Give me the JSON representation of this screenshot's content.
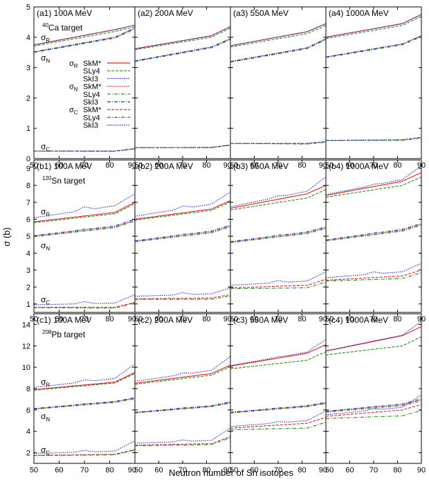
{
  "figure": {
    "xlabel": "Neutron number of Sn isotopes",
    "ylabel": "σ (b)"
  },
  "legend": {
    "entries": [
      {
        "group": "σR",
        "sub": "R",
        "label": "SkM*",
        "color": "#e41a1c",
        "dash": "solid"
      },
      {
        "group": "",
        "sub": "",
        "label": "SLy4",
        "color": "#1a8a1a",
        "dash": "dashed"
      },
      {
        "group": "",
        "sub": "",
        "label": "SkI3",
        "color": "#2222dd",
        "dash": "dotted"
      },
      {
        "group": "σN",
        "sub": "N",
        "label": "SkM*",
        "color": "#e41a1c",
        "dash": "dotted"
      },
      {
        "group": "",
        "sub": "",
        "label": "SLy4",
        "color": "#1a8a1a",
        "dash": "dashdot"
      },
      {
        "group": "",
        "sub": "",
        "label": "SkI3",
        "color": "#2222dd",
        "dash": "dashdot"
      },
      {
        "group": "σC",
        "sub": "C",
        "label": "SkM*",
        "color": "#e41a1c",
        "dash": "dashed"
      },
      {
        "group": "",
        "sub": "",
        "label": "SLy4",
        "color": "#1a8a1a",
        "dash": "dashdot"
      },
      {
        "group": "",
        "sub": "",
        "label": "SkI3",
        "color": "#2222dd",
        "dash": "dotted"
      }
    ]
  },
  "chart_data": {
    "type": "line",
    "x_range": [
      50,
      90
    ],
    "x_ticks": [
      50,
      60,
      70,
      80,
      90
    ],
    "x": [
      50,
      52,
      54,
      56,
      58,
      60,
      62,
      64,
      66,
      68,
      70,
      72,
      74,
      76,
      78,
      80,
      82,
      84,
      86,
      88,
      90
    ],
    "rows": [
      {
        "target_mass": "40",
        "target_element": "Ca",
        "target_suffix": " target",
        "ylim": [
          0,
          5
        ],
        "yticks": [
          0,
          1,
          2,
          3,
          4,
          5
        ],
        "panels": [
          {
            "label": "(a1) 100A MeV",
            "R": [
              3.75,
              4.25,
              4.4
            ],
            "N": [
              3.52,
              4.0,
              4.3
            ],
            "C": [
              0.25,
              0.25,
              0.33
            ],
            "dR": [
              0.04,
              0.02
            ],
            "dN": [
              0.02,
              0.01
            ],
            "dC": [
              0.0,
              0.01
            ],
            "bR": [
              0.0,
              0.0
            ],
            "bN": [
              0.0,
              0.0
            ],
            "bC": [
              0.0,
              0.0
            ]
          },
          {
            "label": "(a2) 200A MeV",
            "R": [
              3.62,
              4.05,
              4.35
            ],
            "N": [
              3.22,
              3.68,
              3.95
            ],
            "C": [
              0.36,
              0.37,
              0.45
            ],
            "dR": [
              0.03,
              0.02
            ],
            "dN": [
              0.02,
              0.01
            ],
            "dC": [
              0.0,
              0.01
            ],
            "bR": [
              0.0,
              0.0
            ],
            "bN": [
              0.0,
              0.0
            ],
            "bC": [
              0.0,
              0.0
            ]
          },
          {
            "label": "(a3) 550A MeV",
            "R": [
              3.72,
              4.18,
              4.45
            ],
            "N": [
              3.2,
              3.65,
              3.95
            ],
            "C": [
              0.5,
              0.5,
              0.56
            ],
            "dR": [
              0.04,
              0.02
            ],
            "dN": [
              0.02,
              0.01
            ],
            "dC": [
              0.0,
              0.02
            ],
            "bR": [
              0.0,
              0.0
            ],
            "bN": [
              0.0,
              0.0
            ],
            "bC": [
              0.0,
              0.0
            ]
          },
          {
            "label": "(a4) 1000A MeV",
            "R": [
              4.0,
              4.45,
              4.75
            ],
            "N": [
              3.35,
              3.78,
              4.05
            ],
            "C": [
              0.6,
              0.62,
              0.7
            ],
            "dR": [
              0.04,
              0.02
            ],
            "dN": [
              0.02,
              0.01
            ],
            "dC": [
              0.0,
              0.02
            ],
            "bR": [
              0.0,
              0.0
            ],
            "bN": [
              0.0,
              0.0
            ],
            "bC": [
              0.0,
              0.0
            ]
          }
        ]
      },
      {
        "target_mass": "120",
        "target_element": "Sn",
        "target_suffix": " target",
        "ylim": [
          0.5,
          9.5
        ],
        "yticks": [
          1,
          2,
          3,
          4,
          5,
          6,
          7,
          8,
          9
        ],
        "panels": [
          {
            "label": "(b1) 100A MeV",
            "R": [
              5.85,
              6.4,
              7.0
            ],
            "N": [
              5.0,
              5.55,
              5.95
            ],
            "C": [
              0.8,
              0.8,
              1.1
            ],
            "dR": [
              0.05,
              0.03
            ],
            "dN": [
              0.03,
              0.02
            ],
            "dC": [
              0.02,
              0.03
            ],
            "bR": [
              0.4,
              0.5
            ],
            "bN": [
              0.05,
              0.05
            ],
            "bC": [
              0.25,
              0.45
            ]
          },
          {
            "label": "(b2) 200A MeV",
            "R": [
              6.0,
              6.6,
              7.1
            ],
            "N": [
              4.7,
              5.25,
              5.6
            ],
            "C": [
              1.3,
              1.35,
              1.55
            ],
            "dR": [
              0.05,
              0.03
            ],
            "dN": [
              0.03,
              0.02
            ],
            "dC": [
              0.03,
              0.05
            ],
            "bR": [
              0.3,
              0.5
            ],
            "bN": [
              0.05,
              0.05
            ],
            "bC": [
              0.25,
              0.4
            ]
          },
          {
            "label": "(b3) 550A MeV",
            "R": [
              6.65,
              7.5,
              8.0
            ],
            "N": [
              4.65,
              5.2,
              5.5
            ],
            "C": [
              1.95,
              2.1,
              2.45
            ],
            "dR": [
              0.1,
              0.15
            ],
            "dN": [
              0.03,
              0.02
            ],
            "dC": [
              0.05,
              0.1
            ],
            "bR": [
              0.15,
              0.5
            ],
            "bN": [
              0.05,
              0.05
            ],
            "bC": [
              0.25,
              0.45
            ]
          },
          {
            "label": "(b4) 1000A MeV",
            "R": [
              7.4,
              8.25,
              8.75
            ],
            "N": [
              4.75,
              5.35,
              5.7
            ],
            "C": [
              2.4,
              2.65,
              3.0
            ],
            "dR": [
              0.1,
              0.15
            ],
            "dN": [
              0.03,
              0.02
            ],
            "dC": [
              0.05,
              0.1
            ],
            "bR": [
              0.1,
              0.4
            ],
            "bN": [
              0.05,
              0.05
            ],
            "bC": [
              0.25,
              0.4
            ]
          }
        ]
      },
      {
        "target_mass": "208",
        "target_element": "Pb",
        "target_suffix": " target",
        "ylim": [
          1,
          15
        ],
        "yticks": [
          2,
          4,
          6,
          8,
          10,
          12,
          14
        ],
        "panels": [
          {
            "label": "(c1) 100A MeV",
            "R": [
              7.9,
              8.6,
              9.5
            ],
            "N": [
              6.1,
              6.75,
              7.1
            ],
            "C": [
              1.75,
              1.85,
              2.3
            ],
            "dR": [
              0.05,
              0.03
            ],
            "dN": [
              0.03,
              0.02
            ],
            "dC": [
              0.02,
              0.03
            ],
            "bR": [
              0.35,
              0.8
            ],
            "bN": [
              0.05,
              0.05
            ],
            "bC": [
              0.3,
              0.8
            ]
          },
          {
            "label": "(c2) 200A MeV",
            "R": [
              8.5,
              9.4,
              10.2
            ],
            "N": [
              5.75,
              6.35,
              6.7
            ],
            "C": [
              2.7,
              2.85,
              3.5
            ],
            "dR": [
              0.1,
              0.05
            ],
            "dN": [
              0.03,
              0.02
            ],
            "dC": [
              0.05,
              0.05
            ],
            "bR": [
              0.3,
              0.8
            ],
            "bN": [
              0.05,
              0.05
            ],
            "bC": [
              0.3,
              0.8
            ]
          },
          {
            "label": "(c3) 550A MeV",
            "R": [
              10.1,
              11.3,
              12.1
            ],
            "N": [
              5.75,
              6.35,
              6.65
            ],
            "C": [
              4.3,
              4.75,
              5.3
            ],
            "dR": [
              0.25,
              0.4
            ],
            "dN": [
              0.03,
              0.02
            ],
            "dC": [
              0.15,
              0.3
            ],
            "bR": [
              0.1,
              0.5
            ],
            "bN": [
              0.05,
              0.05
            ],
            "bC": [
              0.25,
              0.6
            ]
          },
          {
            "label": "(c4) 1000A MeV",
            "R": [
              11.5,
              12.95,
              13.8
            ],
            "N": [
              5.85,
              6.5,
              6.95
            ],
            "C": [
              5.4,
              6.0,
              6.5
            ],
            "dR": [
              0.35,
              0.6
            ],
            "dN": [
              0.05,
              0.05
            ],
            "dC": [
              0.2,
              0.35
            ],
            "bR": [
              0.05,
              0.5
            ],
            "bN": [
              0.05,
              0.1
            ],
            "bC": [
              0.25,
              0.9
            ]
          }
        ]
      }
    ],
    "row_labels": {
      "R": "R",
      "N": "N",
      "C": "C"
    },
    "series_styles": {
      "R": [
        {
          "model": "SkM*",
          "color": "#e41a1c",
          "dash": "solid"
        },
        {
          "model": "SLy4",
          "color": "#1a8a1a",
          "dash": "dashed"
        },
        {
          "model": "SkI3",
          "color": "#2222dd",
          "dash": "dotted"
        }
      ],
      "N": [
        {
          "model": "SkM*",
          "color": "#e41a1c",
          "dash": "dotted"
        },
        {
          "model": "SLy4",
          "color": "#1a8a1a",
          "dash": "dashdot"
        },
        {
          "model": "SkI3",
          "color": "#2222dd",
          "dash": "dashdot"
        }
      ],
      "C": [
        {
          "model": "SkM*",
          "color": "#e41a1c",
          "dash": "dashed"
        },
        {
          "model": "SLy4",
          "color": "#1a8a1a",
          "dash": "dashdot"
        },
        {
          "model": "SkI3",
          "color": "#2222dd",
          "dash": "dotted"
        }
      ]
    }
  }
}
